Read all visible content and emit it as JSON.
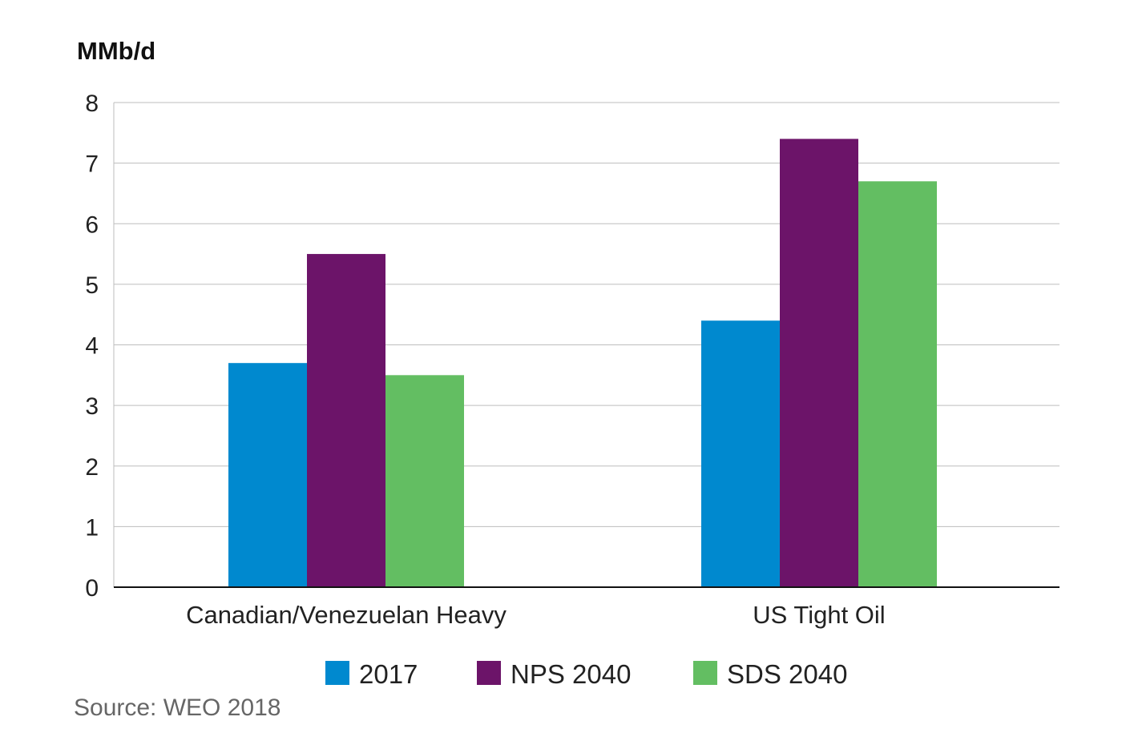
{
  "chart_data": {
    "type": "bar",
    "ylabel": "MMb/d",
    "ylim": [
      0,
      8
    ],
    "yticks": [
      0,
      1,
      2,
      3,
      4,
      5,
      6,
      7,
      8
    ],
    "categories": [
      "Canadian/Venezuelan Heavy",
      "US Tight Oil"
    ],
    "series": [
      {
        "name": "2017",
        "color": "#0089CF",
        "values": [
          3.7,
          4.4
        ]
      },
      {
        "name": "NPS 2040",
        "color": "#6C1469",
        "values": [
          5.5,
          7.4
        ]
      },
      {
        "name": "SDS 2040",
        "color": "#63BE62",
        "values": [
          3.5,
          6.7
        ]
      }
    ],
    "grid": true,
    "legend_position": "bottom"
  },
  "source": "Source: WEO 2018"
}
